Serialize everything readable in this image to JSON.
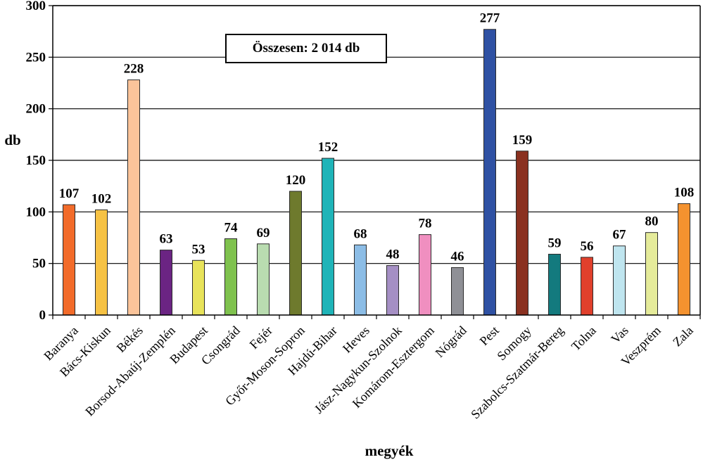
{
  "chart_data": {
    "type": "bar",
    "categories": [
      "Baranya",
      "Bács-Kiskun",
      "Békés",
      "Borsod-Abaúj-Zemplén",
      "Budapest",
      "Csongrád",
      "Fejér",
      "Győr-Moson-Sopron",
      "Hajdú-Bihar",
      "Heves",
      "Jász-Nagykun-Szolnok",
      "Komárom-Esztergom",
      "Nógrád",
      "Pest",
      "Somogy",
      "Szabolcs-Szatmár-Bereg",
      "Tolna",
      "Vas",
      "Veszprém",
      "Zala"
    ],
    "values": [
      107,
      102,
      228,
      63,
      53,
      74,
      69,
      120,
      152,
      68,
      48,
      78,
      46,
      277,
      159,
      59,
      56,
      67,
      80,
      108
    ],
    "colors": [
      "#f26b2a",
      "#f6c244",
      "#fbc49a",
      "#6b2483",
      "#e8e35a",
      "#7fc24e",
      "#b9dcb0",
      "#6e7a2d",
      "#1fb4b8",
      "#8cbde6",
      "#a58fc4",
      "#f08fc0",
      "#8f9096",
      "#2f51a3",
      "#8a3120",
      "#137a7e",
      "#e0402c",
      "#bfe5ef",
      "#e5eb9a",
      "#f4922f"
    ],
    "ylabel": "db",
    "xlabel": "megyék",
    "ylim": [
      0,
      300
    ],
    "yticks": [
      0,
      50,
      100,
      150,
      200,
      250,
      300
    ],
    "grid": true,
    "annotation": "Összesen: 2 014 db"
  }
}
